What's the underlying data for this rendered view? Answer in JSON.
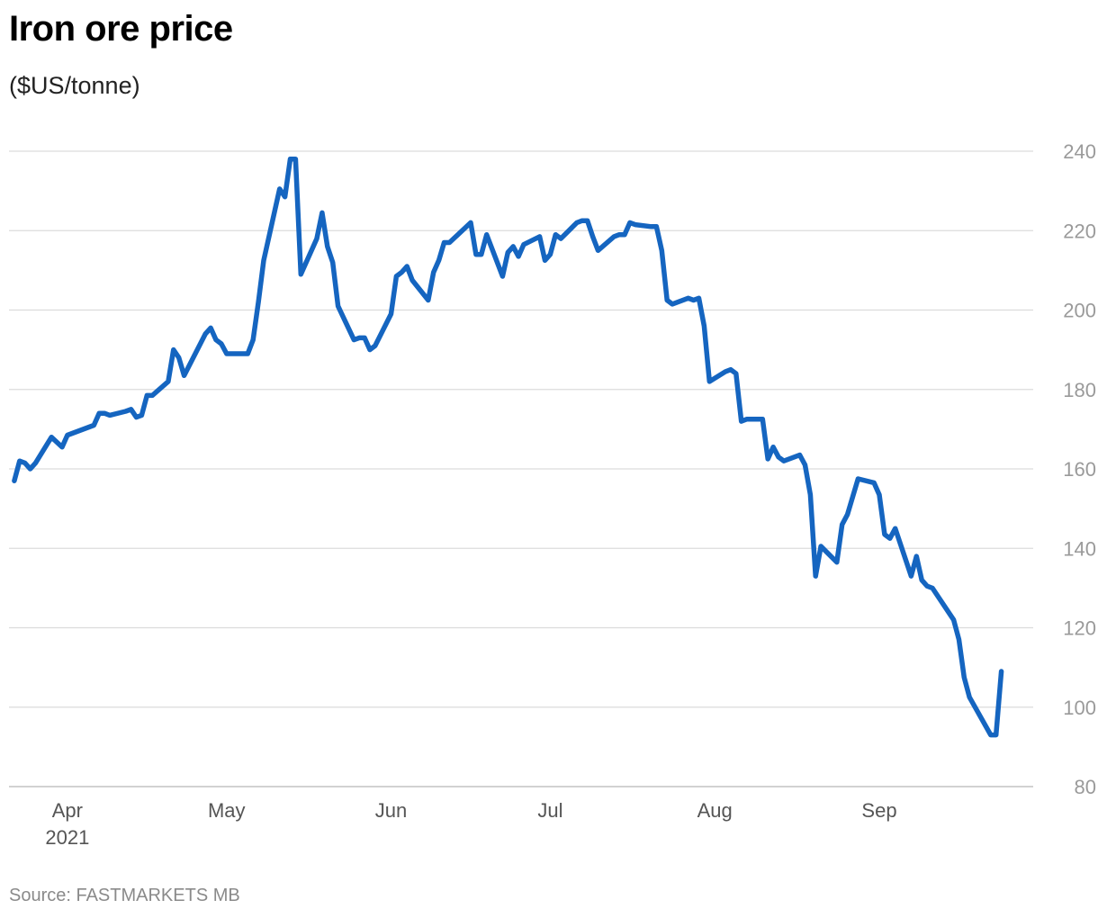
{
  "title": "Iron ore price",
  "subtitle": "($US/tonne)",
  "source": "Source: FASTMARKETS MB",
  "colors": {
    "series": "#1565c0",
    "grid": "#dcdcdc",
    "tick": "#9a9a9a"
  },
  "chart_data": {
    "type": "line",
    "title": "Iron ore price",
    "ylabel": "($US/tonne)",
    "xlabel": "",
    "xlim": [
      "2021-03-21",
      "2021-09-30"
    ],
    "ylim": [
      80,
      240
    ],
    "y_ticks": [
      80,
      100,
      120,
      140,
      160,
      180,
      200,
      220,
      240
    ],
    "x_ticks": [
      {
        "date": "2021-04-01",
        "label": "Apr",
        "sublabel": "2021"
      },
      {
        "date": "2021-05-01",
        "label": "May",
        "sublabel": ""
      },
      {
        "date": "2021-06-01",
        "label": "Jun",
        "sublabel": ""
      },
      {
        "date": "2021-07-01",
        "label": "Jul",
        "sublabel": ""
      },
      {
        "date": "2021-08-01",
        "label": "Aug",
        "sublabel": ""
      },
      {
        "date": "2021-09-01",
        "label": "Sep",
        "sublabel": ""
      }
    ],
    "y_axis_position": "right",
    "grid": true,
    "legend": "none",
    "series": [
      {
        "points": [
          [
            "2021-03-22",
            157
          ],
          [
            "2021-03-23",
            162
          ],
          [
            "2021-03-24",
            161.5
          ],
          [
            "2021-03-25",
            160
          ],
          [
            "2021-03-26",
            161.5
          ],
          [
            "2021-03-29",
            168
          ],
          [
            "2021-03-31",
            165.5
          ],
          [
            "2021-04-01",
            168.5
          ],
          [
            "2021-04-06",
            171
          ],
          [
            "2021-04-07",
            174
          ],
          [
            "2021-04-08",
            174
          ],
          [
            "2021-04-09",
            173.5
          ],
          [
            "2021-04-12",
            174.5
          ],
          [
            "2021-04-13",
            175
          ],
          [
            "2021-04-14",
            173
          ],
          [
            "2021-04-15",
            173.5
          ],
          [
            "2021-04-16",
            178.5
          ],
          [
            "2021-04-17",
            178.5
          ],
          [
            "2021-04-20",
            182
          ],
          [
            "2021-04-21",
            190
          ],
          [
            "2021-04-22",
            188
          ],
          [
            "2021-04-23",
            183.5
          ],
          [
            "2021-04-27",
            194
          ],
          [
            "2021-04-28",
            195.5
          ],
          [
            "2021-04-29",
            192.5
          ],
          [
            "2021-04-30",
            191.5
          ],
          [
            "2021-05-01",
            189
          ],
          [
            "2021-05-04",
            189
          ],
          [
            "2021-05-05",
            189
          ],
          [
            "2021-05-06",
            192.5
          ],
          [
            "2021-05-07",
            202
          ],
          [
            "2021-05-08",
            212.5
          ],
          [
            "2021-05-11",
            230.5
          ],
          [
            "2021-05-12",
            228.5
          ],
          [
            "2021-05-13",
            238
          ],
          [
            "2021-05-14",
            238
          ],
          [
            "2021-05-15",
            209
          ],
          [
            "2021-05-18",
            218
          ],
          [
            "2021-05-19",
            224.5
          ],
          [
            "2021-05-20",
            216
          ],
          [
            "2021-05-21",
            212
          ],
          [
            "2021-05-22",
            201
          ],
          [
            "2021-05-25",
            192.5
          ],
          [
            "2021-05-26",
            193
          ],
          [
            "2021-05-27",
            193
          ],
          [
            "2021-05-28",
            190
          ],
          [
            "2021-05-29",
            191
          ],
          [
            "2021-06-01",
            199
          ],
          [
            "2021-06-02",
            208.5
          ],
          [
            "2021-06-03",
            209.5
          ],
          [
            "2021-06-04",
            211
          ],
          [
            "2021-06-05",
            207.5
          ],
          [
            "2021-06-08",
            202.5
          ],
          [
            "2021-06-09",
            209.5
          ],
          [
            "2021-06-10",
            212.5
          ],
          [
            "2021-06-11",
            217
          ],
          [
            "2021-06-12",
            217
          ],
          [
            "2021-06-16",
            222
          ],
          [
            "2021-06-17",
            214
          ],
          [
            "2021-06-18",
            214
          ],
          [
            "2021-06-19",
            219
          ],
          [
            "2021-06-22",
            208.5
          ],
          [
            "2021-06-23",
            214.5
          ],
          [
            "2021-06-24",
            216
          ],
          [
            "2021-06-25",
            213.5
          ],
          [
            "2021-06-26",
            216.5
          ],
          [
            "2021-06-29",
            218.5
          ],
          [
            "2021-06-30",
            212.5
          ],
          [
            "2021-07-01",
            214
          ],
          [
            "2021-07-02",
            219
          ],
          [
            "2021-07-03",
            218
          ],
          [
            "2021-07-06",
            222
          ],
          [
            "2021-07-07",
            222.5
          ],
          [
            "2021-07-08",
            222.5
          ],
          [
            "2021-07-09",
            218.5
          ],
          [
            "2021-07-10",
            215
          ],
          [
            "2021-07-13",
            218.5
          ],
          [
            "2021-07-14",
            219
          ],
          [
            "2021-07-15",
            219
          ],
          [
            "2021-07-16",
            222
          ],
          [
            "2021-07-17",
            221.5
          ],
          [
            "2021-07-20",
            221
          ],
          [
            "2021-07-21",
            221
          ],
          [
            "2021-07-22",
            215
          ],
          [
            "2021-07-23",
            202.5
          ],
          [
            "2021-07-24",
            201.5
          ],
          [
            "2021-07-27",
            203
          ],
          [
            "2021-07-28",
            202.5
          ],
          [
            "2021-07-29",
            203
          ],
          [
            "2021-07-30",
            196
          ],
          [
            "2021-07-31",
            182
          ],
          [
            "2021-08-03",
            184.5
          ],
          [
            "2021-08-04",
            185
          ],
          [
            "2021-08-05",
            184
          ],
          [
            "2021-08-06",
            172
          ],
          [
            "2021-08-07",
            172.5
          ],
          [
            "2021-08-10",
            172.5
          ],
          [
            "2021-08-11",
            162.5
          ],
          [
            "2021-08-12",
            165.5
          ],
          [
            "2021-08-13",
            163
          ],
          [
            "2021-08-14",
            162
          ],
          [
            "2021-08-17",
            163.5
          ],
          [
            "2021-08-18",
            161
          ],
          [
            "2021-08-19",
            153.5
          ],
          [
            "2021-08-20",
            133
          ],
          [
            "2021-08-21",
            140.5
          ],
          [
            "2021-08-24",
            136.5
          ],
          [
            "2021-08-25",
            146
          ],
          [
            "2021-08-26",
            148.5
          ],
          [
            "2021-08-28",
            157.5
          ],
          [
            "2021-08-31",
            156.5
          ],
          [
            "2021-09-01",
            153.5
          ],
          [
            "2021-09-02",
            143.5
          ],
          [
            "2021-09-03",
            142.5
          ],
          [
            "2021-09-04",
            145
          ],
          [
            "2021-09-07",
            133
          ],
          [
            "2021-09-08",
            138
          ],
          [
            "2021-09-09",
            132
          ],
          [
            "2021-09-10",
            130.5
          ],
          [
            "2021-09-11",
            130
          ],
          [
            "2021-09-15",
            122
          ],
          [
            "2021-09-16",
            117
          ],
          [
            "2021-09-17",
            107.5
          ],
          [
            "2021-09-18",
            102.5
          ],
          [
            "2021-09-22",
            93
          ],
          [
            "2021-09-23",
            93
          ],
          [
            "2021-09-24",
            109
          ]
        ]
      }
    ]
  }
}
